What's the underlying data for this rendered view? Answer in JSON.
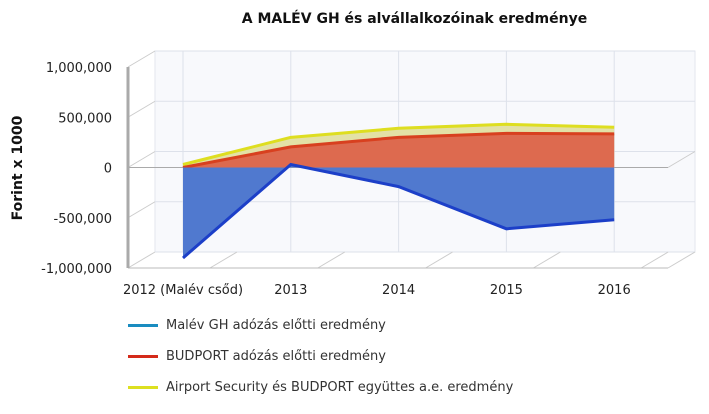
{
  "chart_data": {
    "type": "area",
    "title": "A MALÉV GH és alvállalkozóinak eredménye",
    "xlabel": "",
    "ylabel": "Forint x 1000",
    "categories": [
      "2012 (Malév csőd)",
      "2013",
      "2014",
      "2015",
      "2016"
    ],
    "ylim": [
      -1000000,
      1000000
    ],
    "yticks": [
      1000000,
      500000,
      0,
      -500000,
      -1000000
    ],
    "ytick_labels": [
      "1,000,000",
      "500,000",
      "0",
      "-500,000",
      "-1,000,000"
    ],
    "grid": true,
    "legend_position": "bottom",
    "series": [
      {
        "name": "Airport Security és BUDPORT együttes a.e. eredmény",
        "values": [
          30000,
          300000,
          390000,
          430000,
          400000
        ],
        "color": "#dede20",
        "fill": "#e3e1a6"
      },
      {
        "name": "BUDPORT adózás előtti eredmény",
        "values": [
          0,
          205000,
          300000,
          340000,
          335000
        ],
        "color": "#d8401f",
        "fill": "#dd6a4f"
      },
      {
        "name": "Malév GH adózás előtti eredmény",
        "values": [
          -900000,
          30000,
          -190000,
          -610000,
          -520000
        ],
        "color": "#1c3fc8",
        "fill": "#5079cf"
      }
    ],
    "legend": [
      {
        "name": "Malév GH adózás előtti eredmény",
        "color": "#1a8cc0"
      },
      {
        "name": "BUDPORT adózás előtti eredmény",
        "color": "#d42a1a"
      },
      {
        "name": "Airport Security és BUDPORT együttes a.e. eredmény",
        "color": "#dde020"
      }
    ]
  }
}
